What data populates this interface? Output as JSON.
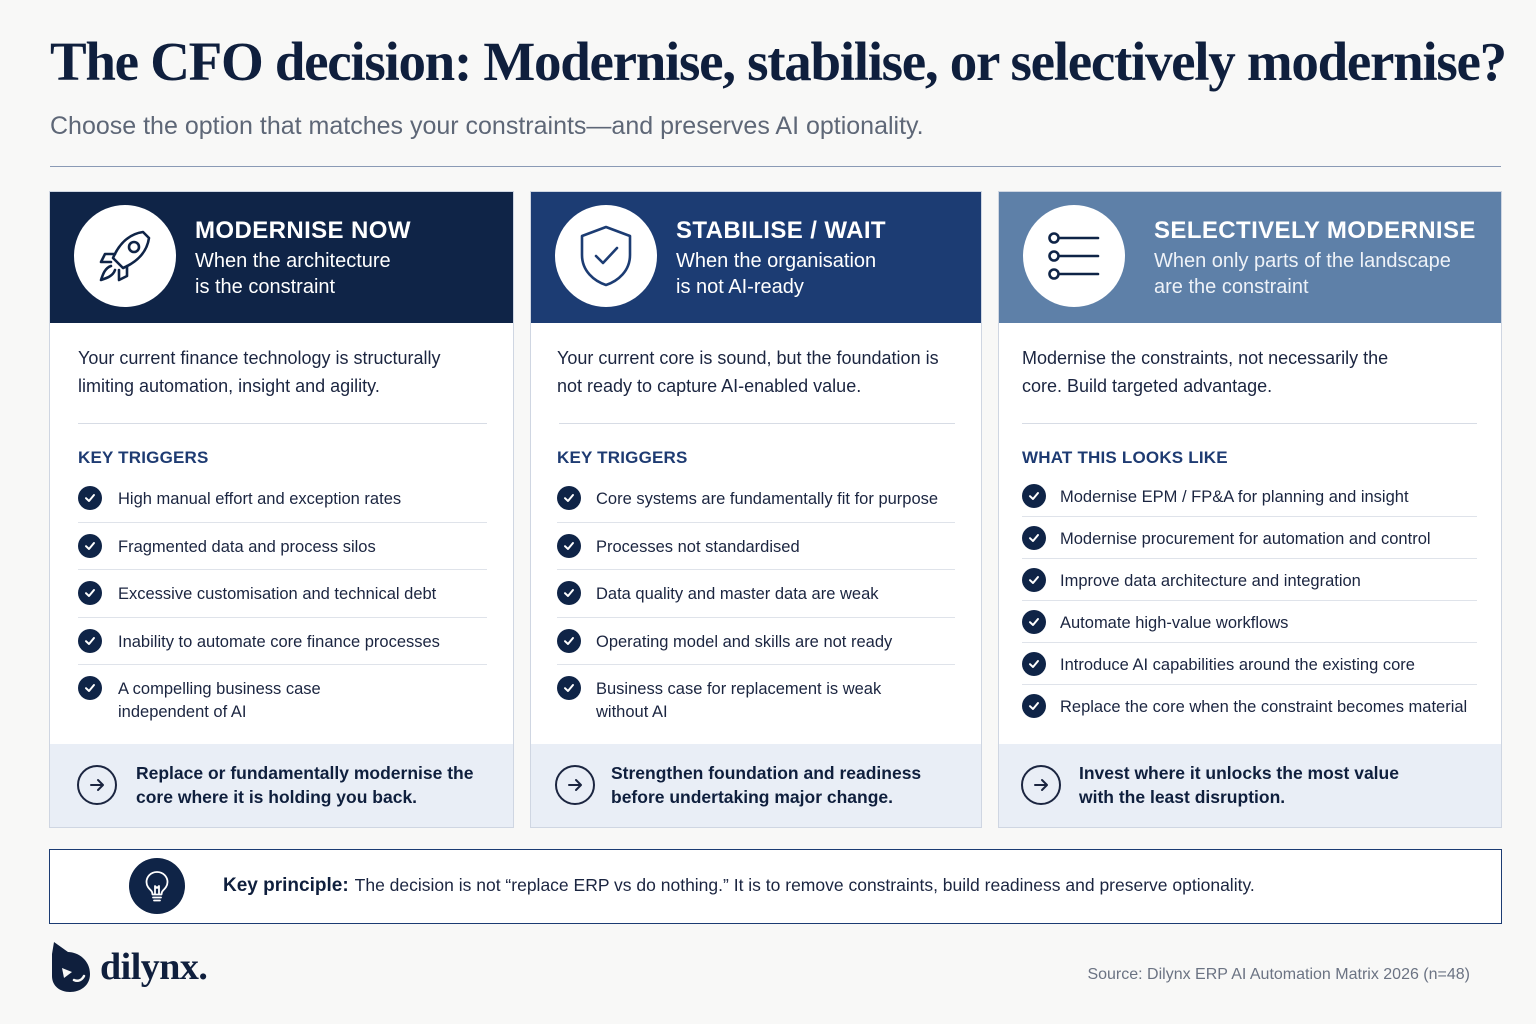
{
  "header": {
    "title": "The CFO decision: Modernise, stabilise, or selectively modernise?",
    "subtitle": "Choose the option that matches your constraints—and preserves AI optionality."
  },
  "cards": [
    {
      "icon": "rocket-icon",
      "title": "MODERNISE NOW",
      "subtitle_line1": "When the architecture",
      "subtitle_line2": "is the constraint",
      "header_color": "#0f2447",
      "description": "Your current finance technology is structurally limiting automation, insight and agility.",
      "section_label": "KEY TRIGGERS",
      "items": [
        "High manual effort and exception rates",
        "Fragmented data and process silos",
        "Excessive customisation and technical debt",
        "Inability to automate core finance processes",
        "A compelling business case independent of AI"
      ],
      "footer": "Replace or fundamentally modernise the core where it is holding you back."
    },
    {
      "icon": "shield-check-icon",
      "title": "STABILISE / WAIT",
      "subtitle_line1": "When the organisation",
      "subtitle_line2": "is not AI-ready",
      "header_color": "#1c3c73",
      "description": "Your current core is sound, but the foundation is not ready to capture AI-enabled value.",
      "section_label": "KEY TRIGGERS",
      "items": [
        "Core systems are fundamentally fit for purpose",
        "Processes not standardised",
        "Data quality and master data are weak",
        "Operating model and skills are not ready",
        "Business case for replacement is weak without AI"
      ],
      "footer": "Strengthen foundation and readiness before undertaking major change."
    },
    {
      "icon": "sliders-icon",
      "title": "SELECTIVELY MODERNISE",
      "subtitle_line1": "When only parts of the landscape",
      "subtitle_line2": "are the constraint",
      "header_color": "#5e80a8",
      "description": "Modernise the constraints, not necessarily the core. Build targeted advantage.",
      "section_label": "WHAT THIS LOOKS LIKE",
      "items": [
        "Modernise EPM / FP&A for planning and insight",
        "Modernise procurement for automation and control",
        "Improve data architecture and integration",
        "Automate high-value workflows",
        "Introduce AI capabilities around the existing core",
        "Replace the core when the constraint becomes material"
      ],
      "footer": "Invest where it unlocks the most value with the least disruption."
    }
  ],
  "principle": {
    "icon": "lightbulb-icon",
    "label": "Key principle:",
    "text": "The decision is not “replace ERP vs do nothing.”  It is to remove constraints, build readiness and preserve optionality."
  },
  "footer": {
    "logo_text": "dilynx.",
    "source": "Source: Dilynx ERP AI Automation Matrix 2026 (n=48)"
  }
}
